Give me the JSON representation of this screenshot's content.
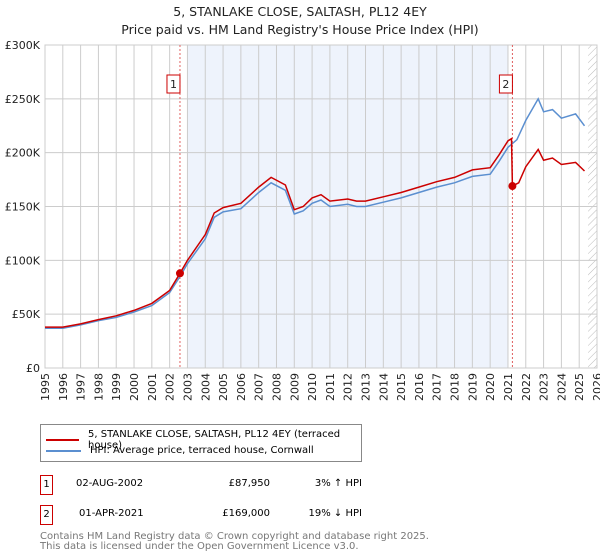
{
  "title": "5, STANLAKE CLOSE, SALTASH, PL12 4EY",
  "subtitle": "Price paid vs. HM Land Registry's House Price Index (HPI)",
  "chart_data": {
    "type": "line",
    "xlim": [
      1995,
      2026
    ],
    "ylim": [
      0,
      300000
    ],
    "yticks": [
      0,
      50000,
      100000,
      150000,
      200000,
      250000,
      300000
    ],
    "ytick_labels": [
      "£0",
      "£50K",
      "£100K",
      "£150K",
      "£200K",
      "£250K",
      "£300K"
    ],
    "xticks": [
      "1995",
      "1996",
      "1997",
      "1998",
      "1999",
      "2000",
      "2001",
      "2002",
      "2003",
      "2004",
      "2005",
      "2006",
      "2007",
      "2008",
      "2009",
      "2010",
      "2011",
      "2012",
      "2013",
      "2014",
      "2015",
      "2016",
      "2017",
      "2018",
      "2019",
      "2020",
      "2021",
      "2022",
      "2023",
      "2024",
      "2025",
      "2026"
    ],
    "series": [
      {
        "name": "5, STANLAKE CLOSE, SALTASH, PL12 4EY (terraced house)",
        "color": "#cc0000",
        "x": [
          1995,
          1996,
          1997,
          1998,
          1999,
          2000,
          2001,
          2002,
          2002.58,
          2003,
          2004,
          2004.5,
          2005,
          2006,
          2007,
          2007.7,
          2008.5,
          2009,
          2009.5,
          2010,
          2010.5,
          2011,
          2012,
          2012.5,
          2013,
          2014,
          2015,
          2016,
          2017,
          2018,
          2019,
          2020,
          2020.5,
          2021,
          2021.2,
          2021.25,
          2021.6,
          2022,
          2022.7,
          2023,
          2023.5,
          2024,
          2024.8,
          2025.3
        ],
        "y": [
          38000,
          38000,
          41000,
          45000,
          48500,
          53500,
          60000,
          72000,
          87950,
          100000,
          124000,
          144000,
          149000,
          153000,
          168000,
          177000,
          170000,
          147000,
          150000,
          158000,
          161000,
          155000,
          157000,
          155000,
          155000,
          159000,
          163000,
          168000,
          173000,
          177000,
          184000,
          186000,
          198000,
          211000,
          213000,
          169000,
          172000,
          187000,
          203000,
          193000,
          195000,
          189000,
          191000,
          183000
        ]
      },
      {
        "name": "HPI: Average price, terraced house, Cornwall",
        "color": "#5b8fd0",
        "x": [
          1995,
          1996,
          1997,
          1998,
          1999,
          2000,
          2001,
          2002,
          2002.58,
          2003,
          2004,
          2004.5,
          2005,
          2006,
          2007,
          2007.7,
          2008.5,
          2009,
          2009.5,
          2010,
          2010.5,
          2011,
          2012,
          2012.5,
          2013,
          2014,
          2015,
          2016,
          2017,
          2018,
          2019,
          2020,
          2020.5,
          2021,
          2021.5,
          2022,
          2022.7,
          2023,
          2023.5,
          2024,
          2024.8,
          2025.3
        ],
        "y": [
          37000,
          37000,
          40000,
          44000,
          47000,
          52000,
          58000,
          70000,
          85000,
          97000,
          120000,
          140000,
          145000,
          148000,
          163000,
          172000,
          165000,
          143000,
          146000,
          153000,
          156000,
          150000,
          152000,
          150000,
          150000,
          154000,
          158000,
          163000,
          168000,
          172000,
          178000,
          180000,
          192000,
          205000,
          212000,
          230000,
          250000,
          238000,
          240000,
          232000,
          236000,
          225000
        ]
      }
    ],
    "annotations": [
      {
        "label": "1",
        "x": 2002.58,
        "y": 87950
      },
      {
        "label": "2",
        "x": 2021.25,
        "y": 169000
      }
    ],
    "shaded_range": [
      2003,
      2021
    ]
  },
  "legend": {
    "items": [
      "5, STANLAKE CLOSE, SALTASH, PL12 4EY (terraced house)",
      "HPI: Average price, terraced house, Cornwall"
    ]
  },
  "transactions": [
    {
      "num": "1",
      "date": "02-AUG-2002",
      "price": "£87,950",
      "hpi": "3% ↑ HPI"
    },
    {
      "num": "2",
      "date": "01-APR-2021",
      "price": "£169,000",
      "hpi": "19% ↓ HPI"
    }
  ],
  "footer": [
    "Contains HM Land Registry data © Crown copyright and database right 2025.",
    "This data is licensed under the Open Government Licence v3.0."
  ]
}
